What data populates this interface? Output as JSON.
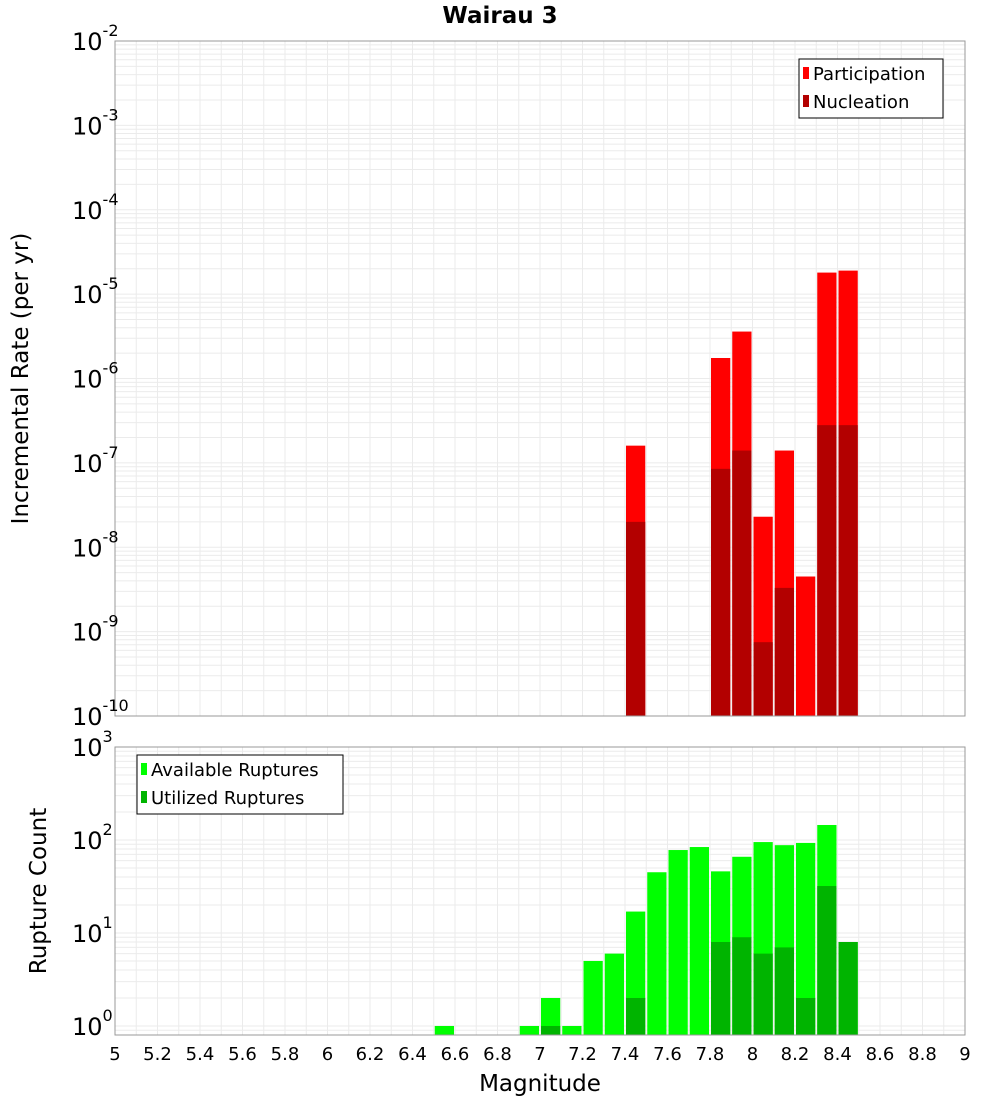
{
  "title": "Wairau 3",
  "colors": {
    "participation": "#ff0000",
    "nucleation": "#b30000",
    "available": "#00ff00",
    "utilized": "#00b400",
    "grid": "#ebebeb",
    "frame": "#999999"
  },
  "chart_data": [
    {
      "type": "bar",
      "subtype": "overlaid-log",
      "xlabel": "Magnitude",
      "ylabel": "Incremental Rate (per yr)",
      "xlim": [
        5,
        9
      ],
      "ylim": [
        1e-10,
        0.01
      ],
      "yscale": "log",
      "ytick_exponents": [
        -10,
        -9,
        -8,
        -7,
        -6,
        -5,
        -4,
        -3,
        -2
      ],
      "ytick_base": "10",
      "bin_width": 0.1,
      "grid": true,
      "legend_position": "top-right",
      "series": [
        {
          "name": "Participation",
          "color_key": "participation",
          "points": [
            {
              "x": 7.45,
              "y": 1.6e-07
            },
            {
              "x": 7.85,
              "y": 1.75e-06
            },
            {
              "x": 7.95,
              "y": 3.6e-06
            },
            {
              "x": 8.05,
              "y": 2.3e-08
            },
            {
              "x": 8.15,
              "y": 1.4e-07
            },
            {
              "x": 8.25,
              "y": 4.5e-09
            },
            {
              "x": 8.35,
              "y": 1.8e-05
            },
            {
              "x": 8.45,
              "y": 1.9e-05
            }
          ]
        },
        {
          "name": "Nucleation",
          "color_key": "nucleation",
          "points": [
            {
              "x": 7.45,
              "y": 2e-08
            },
            {
              "x": 7.85,
              "y": 8.5e-08
            },
            {
              "x": 7.95,
              "y": 1.4e-07
            },
            {
              "x": 8.05,
              "y": 7.5e-10
            },
            {
              "x": 8.15,
              "y": 3.3e-09
            },
            {
              "x": 8.35,
              "y": 2.8e-07
            },
            {
              "x": 8.45,
              "y": 2.8e-07
            }
          ]
        }
      ]
    },
    {
      "type": "bar",
      "subtype": "overlaid-log",
      "xlabel": "Magnitude",
      "ylabel": "Rupture Count",
      "xlim": [
        5,
        9
      ],
      "ylim": [
        0.8,
        1000
      ],
      "yscale": "log",
      "ytick_exponents": [
        0,
        1,
        2,
        3
      ],
      "ytick_base": "10",
      "xticks": [
        "5",
        "5.2",
        "5.4",
        "5.6",
        "5.8",
        "6",
        "6.2",
        "6.4",
        "6.6",
        "6.8",
        "7",
        "7.2",
        "7.4",
        "7.6",
        "7.8",
        "8",
        "8.2",
        "8.4",
        "8.6",
        "8.8",
        "9"
      ],
      "bin_width": 0.1,
      "grid": true,
      "legend_position": "top-left",
      "series": [
        {
          "name": "Available Ruptures",
          "color_key": "available",
          "points": [
            {
              "x": 6.55,
              "y": 1
            },
            {
              "x": 6.95,
              "y": 1
            },
            {
              "x": 7.05,
              "y": 2
            },
            {
              "x": 7.15,
              "y": 1
            },
            {
              "x": 7.25,
              "y": 5
            },
            {
              "x": 7.35,
              "y": 6
            },
            {
              "x": 7.45,
              "y": 17
            },
            {
              "x": 7.55,
              "y": 45
            },
            {
              "x": 7.65,
              "y": 78
            },
            {
              "x": 7.75,
              "y": 84
            },
            {
              "x": 7.85,
              "y": 46
            },
            {
              "x": 7.95,
              "y": 66
            },
            {
              "x": 8.05,
              "y": 95
            },
            {
              "x": 8.15,
              "y": 88
            },
            {
              "x": 8.25,
              "y": 93
            },
            {
              "x": 8.35,
              "y": 145
            },
            {
              "x": 8.45,
              "y": 8
            }
          ]
        },
        {
          "name": "Utilized Ruptures",
          "color_key": "utilized",
          "points": [
            {
              "x": 7.05,
              "y": 1
            },
            {
              "x": 7.45,
              "y": 2
            },
            {
              "x": 7.85,
              "y": 8
            },
            {
              "x": 7.95,
              "y": 9
            },
            {
              "x": 8.05,
              "y": 6
            },
            {
              "x": 8.15,
              "y": 7
            },
            {
              "x": 8.25,
              "y": 2
            },
            {
              "x": 8.35,
              "y": 32
            },
            {
              "x": 8.45,
              "y": 8
            }
          ]
        }
      ]
    }
  ]
}
